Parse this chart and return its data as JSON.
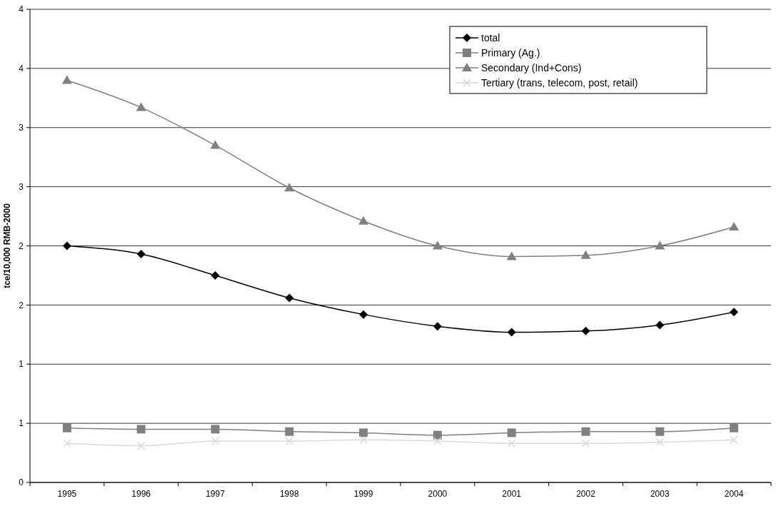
{
  "chart_data": {
    "type": "line",
    "ylabel": "tce/10,000 RMB-2000",
    "categories": [
      "1995",
      "1996",
      "1997",
      "1998",
      "1999",
      "2000",
      "2001",
      "2002",
      "2003",
      "2004"
    ],
    "series": [
      {
        "name": "total",
        "color": "#000000",
        "marker": "diamond",
        "values": [
          2.0,
          1.93,
          1.75,
          1.56,
          1.42,
          1.32,
          1.27,
          1.28,
          1.33,
          1.44
        ]
      },
      {
        "name": "Primary (Ag.)",
        "color": "#808080",
        "marker": "square",
        "values": [
          0.46,
          0.45,
          0.45,
          0.43,
          0.42,
          0.4,
          0.42,
          0.43,
          0.43,
          0.46
        ]
      },
      {
        "name": "Secondary (Ind+Cons)",
        "color": "#808080",
        "marker": "triangle",
        "values": [
          3.4,
          3.17,
          2.85,
          2.49,
          2.21,
          2.0,
          1.91,
          1.92,
          2.0,
          2.16
        ]
      },
      {
        "name": "Tertiary (trans, telecom, post, retail)",
        "color": "#d9d9d9",
        "marker": "cross",
        "values": [
          0.33,
          0.31,
          0.35,
          0.35,
          0.36,
          0.35,
          0.33,
          0.33,
          0.34,
          0.36
        ]
      }
    ],
    "ylim": [
      0,
      4
    ],
    "yticks": [
      0,
      {
        "value": 0.5,
        "label": "1"
      },
      1,
      {
        "value": 1.5,
        "label": "2"
      },
      2,
      {
        "value": 2.5,
        "label": "3"
      },
      3,
      {
        "value": 3.5,
        "label": "4"
      },
      4
    ],
    "grid": "y",
    "legend": "top right"
  }
}
